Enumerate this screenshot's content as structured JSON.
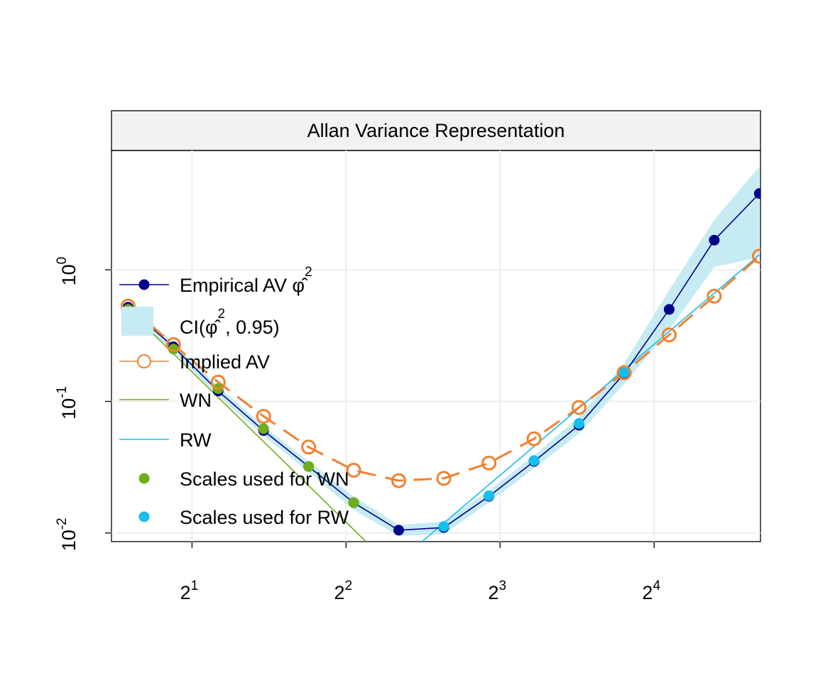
{
  "chart_data": {
    "type": "line",
    "title": "Allan Variance Representation",
    "x_scale": "log2",
    "y_scale": "log10",
    "xlim": [
      1.392,
      25.82
    ],
    "ylim": [
      0.0086,
      8.07
    ],
    "x_ticks": [
      {
        "value": 2,
        "base": "2",
        "exp": "1"
      },
      {
        "value": 4,
        "base": "2",
        "exp": "2"
      },
      {
        "value": 8,
        "base": "2",
        "exp": "3"
      },
      {
        "value": 16,
        "base": "2",
        "exp": "4"
      }
    ],
    "y_ticks": [
      {
        "value": 0.01,
        "base": "10",
        "exp": "-2"
      },
      {
        "value": 0.1,
        "base": "10",
        "exp": "-1"
      },
      {
        "value": 1,
        "base": "10",
        "exp": "0"
      }
    ],
    "grid": true,
    "legend_position": "left",
    "colors": {
      "empirical": "#00008B",
      "ci_band": "#C6EBF3",
      "implied": "#F0812F",
      "wn": "#6FAE19",
      "rw": "#16BDF0",
      "strip": "#F2F2F2",
      "grid": "#EEEEEE"
    },
    "series": [
      {
        "name": "Empirical AV",
        "key": "empirical",
        "x": [
          1.5,
          1.84,
          2.25,
          2.76,
          3.38,
          4.14,
          5.07,
          6.21,
          7.61,
          9.32,
          11.41,
          13.98,
          17.12,
          20.97,
          25.69
        ],
        "y": [
          0.52,
          0.26,
          0.12,
          0.06,
          0.032,
          0.017,
          0.0105,
          0.011,
          0.019,
          0.035,
          0.066,
          0.163,
          0.5,
          1.68,
          3.8
        ]
      },
      {
        "name": "CI band",
        "key": "ci",
        "x": [
          1.5,
          1.84,
          2.25,
          2.76,
          3.38,
          4.14,
          5.07,
          6.21,
          7.61,
          9.32,
          11.41,
          13.98,
          17.12,
          20.97,
          25.69
        ],
        "lower": [
          0.48,
          0.24,
          0.11,
          0.055,
          0.029,
          0.015,
          0.0095,
          0.0098,
          0.017,
          0.031,
          0.057,
          0.135,
          0.35,
          1.05,
          1.25
        ],
        "upper": [
          0.56,
          0.28,
          0.13,
          0.065,
          0.035,
          0.019,
          0.0115,
          0.0122,
          0.021,
          0.039,
          0.076,
          0.195,
          0.7,
          2.4,
          6.1
        ]
      },
      {
        "name": "Implied AV",
        "key": "implied",
        "x": [
          1.5,
          1.84,
          2.25,
          2.76,
          3.38,
          4.14,
          5.07,
          6.21,
          7.61,
          9.32,
          11.41,
          13.98,
          17.12,
          20.97,
          25.69
        ],
        "y": [
          0.53,
          0.27,
          0.14,
          0.077,
          0.045,
          0.03,
          0.025,
          0.026,
          0.034,
          0.052,
          0.09,
          0.165,
          0.32,
          0.63,
          1.27
        ]
      },
      {
        "name": "WN",
        "key": "wn",
        "x": [
          1.5,
          4.45
        ],
        "y": [
          0.5,
          0.00806
        ]
      },
      {
        "name": "RW",
        "key": "rw",
        "x": [
          5.63,
          25.69
        ],
        "y": [
          0.00859,
          1.3
        ]
      },
      {
        "name": "Scales used for WN",
        "key": "wn_points",
        "x": [
          1.5,
          1.84,
          2.25,
          2.76,
          3.38,
          4.14
        ],
        "y": [
          0.5,
          0.25,
          0.125,
          0.062,
          0.032,
          0.017
        ]
      },
      {
        "name": "Scales used for RW",
        "key": "rw_points",
        "x": [
          6.21,
          7.61,
          9.32,
          11.41,
          13.98
        ],
        "y": [
          0.0112,
          0.0192,
          0.0355,
          0.068,
          0.166
        ]
      }
    ],
    "legend": [
      {
        "key": "empirical",
        "label": "Empirical AV ",
        "math": "φ̂",
        "sup": "2",
        "suffix": ""
      },
      {
        "key": "ci",
        "label": "CI(",
        "math": "φ̂",
        "sup": "2",
        "suffix": ", 0.95)"
      },
      {
        "key": "implied",
        "label": "Implied AV",
        "math": "",
        "sup": "",
        "suffix": ""
      },
      {
        "key": "wn",
        "label": "WN",
        "math": "",
        "sup": "",
        "suffix": ""
      },
      {
        "key": "rw",
        "label": "RW",
        "math": "",
        "sup": "",
        "suffix": ""
      },
      {
        "key": "wn_points",
        "label": "Scales used for WN",
        "math": "",
        "sup": "",
        "suffix": ""
      },
      {
        "key": "rw_points",
        "label": "Scales used for RW",
        "math": "",
        "sup": "",
        "suffix": ""
      }
    ]
  }
}
